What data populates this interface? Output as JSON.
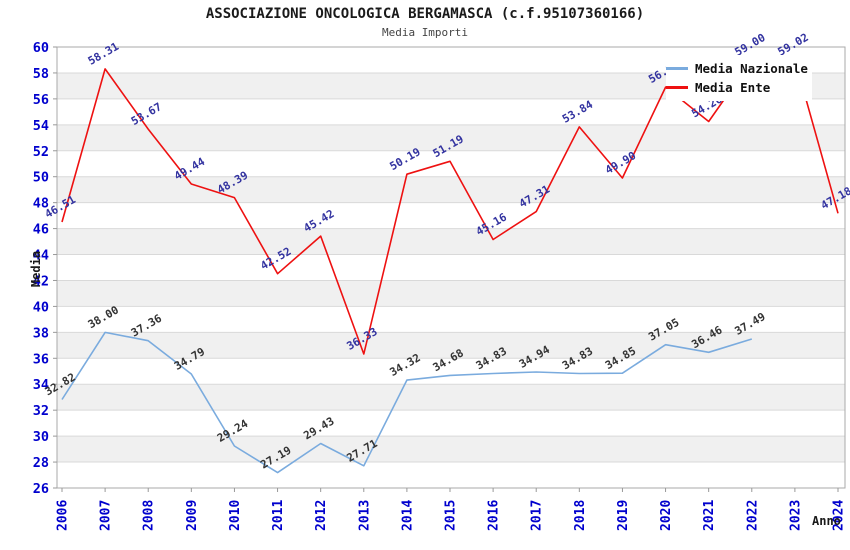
{
  "chart_data": {
    "type": "line",
    "title": "ASSOCIAZIONE ONCOLOGICA BERGAMASCA (c.f.95107360166)",
    "subtitle": "Media Importi",
    "xlabel": "Anno",
    "ylabel": "Media",
    "ylim": [
      26,
      60
    ],
    "ytick_step": 2,
    "grid": "horizontal gridlines with alternating gray bands",
    "legend_position": "top-right",
    "axis_tick_color": "#0000cd",
    "band_color": "#f0f0f0",
    "gridline_color": "#d9d9d9",
    "border_color": "#aaaaaa",
    "categories": [
      "2006",
      "2007",
      "2008",
      "2009",
      "2010",
      "2011",
      "2012",
      "2013",
      "2014",
      "2015",
      "2016",
      "2017",
      "2018",
      "2019",
      "2020",
      "2021",
      "2022",
      "2023",
      "2024"
    ],
    "series": [
      {
        "name": "Media Nazionale",
        "color": "#7aabde",
        "label_color": "#333333",
        "values": [
          32.82,
          38.0,
          37.36,
          34.79,
          29.24,
          27.19,
          29.43,
          27.71,
          34.32,
          34.68,
          34.83,
          34.94,
          34.83,
          34.85,
          37.05,
          36.46,
          37.49,
          null,
          null
        ]
      },
      {
        "name": "Media Ente",
        "color": "#ee1111",
        "label_color": "#3333a0",
        "values": [
          46.51,
          58.31,
          53.67,
          49.44,
          48.39,
          42.52,
          45.42,
          36.33,
          50.19,
          51.19,
          45.16,
          47.31,
          53.84,
          49.9,
          56.91,
          54.26,
          59.0,
          59.02,
          47.18
        ]
      }
    ]
  }
}
